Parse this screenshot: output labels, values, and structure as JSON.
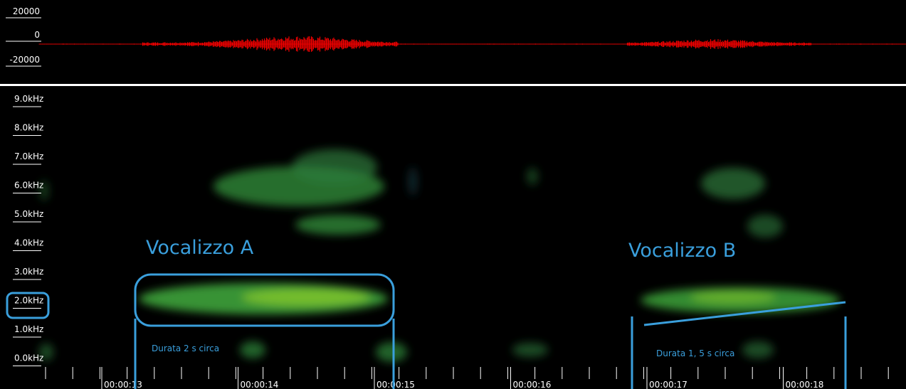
{
  "waveform": {
    "amplitude_labels": [
      "20000",
      "0",
      "-20000"
    ]
  },
  "spectrogram": {
    "frequency_labels": [
      "9.0kHz",
      "8.0kHz",
      "7.0kHz",
      "6.0kHz",
      "5.0kHz",
      "4.0kHz",
      "3.0kHz",
      "2.0kHz",
      "1.0kHz",
      "0.0kHz"
    ],
    "time_labels": [
      "00:00:13",
      "00:00:14",
      "00:00:15",
      "00:00:16",
      "00:00:17",
      "00:00:18"
    ]
  },
  "annotations": {
    "call_a": {
      "label": "Vocalizzo A",
      "duration": "Durata 2 s circa"
    },
    "call_b": {
      "label": "Vocalizzo B",
      "duration": "Durata 1, 5 s circa"
    }
  }
}
